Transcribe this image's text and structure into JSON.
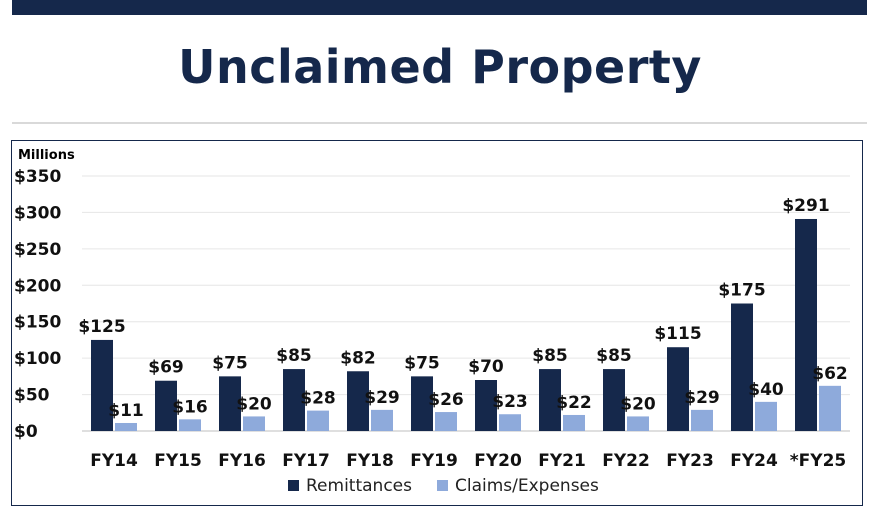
{
  "page": {
    "title": "Unclaimed Property"
  },
  "chart_data": {
    "type": "bar",
    "title": "Unclaimed Property",
    "units_label": "Millions",
    "categories": [
      "FY14",
      "FY15",
      "FY16",
      "FY17",
      "FY18",
      "FY19",
      "FY20",
      "FY21",
      "FY22",
      "FY23",
      "FY24",
      "*FY25"
    ],
    "series": [
      {
        "name": "Remittances",
        "color": "#15284b",
        "values": [
          125,
          69,
          75,
          85,
          82,
          75,
          70,
          85,
          85,
          115,
          175,
          291
        ],
        "labels": [
          "$125",
          "$69",
          "$75",
          "$85",
          "$82",
          "$75",
          "$70",
          "$85",
          "$85",
          "$115",
          "$175",
          "$291"
        ]
      },
      {
        "name": "Claims/Expenses",
        "color": "#8eaadb",
        "values": [
          11,
          16,
          20,
          28,
          29,
          26,
          23,
          22,
          20,
          29,
          40,
          62
        ],
        "labels": [
          "$11",
          "$16",
          "$20",
          "$28",
          "$29",
          "$26",
          "$23",
          "$22",
          "$20",
          "$29",
          "$40",
          "$62"
        ]
      }
    ],
    "ylim": [
      0,
      350
    ],
    "yticks": [
      0,
      50,
      100,
      150,
      200,
      250,
      300,
      350
    ],
    "ytick_labels": [
      "$0",
      "$50",
      "$100",
      "$150",
      "$200",
      "$250",
      "$300",
      "$350"
    ],
    "grid": true,
    "legend": "bottom"
  }
}
